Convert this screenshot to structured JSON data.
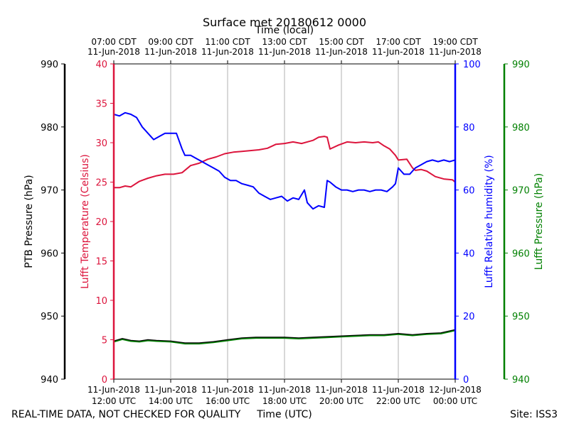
{
  "chart_data": {
    "type": "line",
    "title": "Surface met 20180612 0000",
    "top_xlabel": "Time (local)",
    "xlabel": "Time (UTC)",
    "footer_left": "REAL-TIME DATA, NOT CHECKED FOR QUALITY",
    "footer_right": "Site: ISS3",
    "x_hours": [
      12,
      24
    ],
    "bottom_ticks": [
      {
        "hour": 12,
        "line1": "11-Jun-2018",
        "line2": "12:00 UTC"
      },
      {
        "hour": 14,
        "line1": "11-Jun-2018",
        "line2": "14:00 UTC"
      },
      {
        "hour": 16,
        "line1": "11-Jun-2018",
        "line2": "16:00 UTC"
      },
      {
        "hour": 18,
        "line1": "11-Jun-2018",
        "line2": "18:00 UTC"
      },
      {
        "hour": 20,
        "line1": "11-Jun-2018",
        "line2": "20:00 UTC"
      },
      {
        "hour": 22,
        "line1": "11-Jun-2018",
        "line2": "22:00 UTC"
      },
      {
        "hour": 24,
        "line1": "12-Jun-2018",
        "line2": "00:00 UTC"
      }
    ],
    "top_ticks": [
      {
        "hour": 12,
        "line1": "07:00 CDT",
        "line2": "11-Jun-2018"
      },
      {
        "hour": 14,
        "line1": "09:00 CDT",
        "line2": "11-Jun-2018"
      },
      {
        "hour": 16,
        "line1": "11:00 CDT",
        "line2": "11-Jun-2018"
      },
      {
        "hour": 18,
        "line1": "13:00 CDT",
        "line2": "11-Jun-2018"
      },
      {
        "hour": 20,
        "line1": "15:00 CDT",
        "line2": "11-Jun-2018"
      },
      {
        "hour": 22,
        "line1": "17:00 CDT",
        "line2": "11-Jun-2018"
      },
      {
        "hour": 24,
        "line1": "19:00 CDT",
        "line2": "11-Jun-2018"
      }
    ],
    "axes": [
      {
        "id": "ptb",
        "label": "PTB Pressure (hPa)",
        "color": "#000000",
        "range": [
          940,
          990
        ],
        "ticks": [
          940,
          950,
          960,
          970,
          980,
          990
        ]
      },
      {
        "id": "temp",
        "label": "Lufft Temperature (Celsius)",
        "color": "#dc143c",
        "range": [
          0,
          40
        ],
        "ticks": [
          0,
          5,
          10,
          15,
          20,
          25,
          30,
          35,
          40
        ]
      },
      {
        "id": "rh",
        "label": "Lufft Relative humidity (%)",
        "color": "#0000ff",
        "range": [
          0,
          100
        ],
        "ticks": [
          0,
          20,
          40,
          60,
          80,
          100
        ]
      },
      {
        "id": "lp",
        "label": "Lufft Pressure (hPa)",
        "color": "#008000",
        "range": [
          940,
          990
        ],
        "ticks": [
          940,
          950,
          960,
          970,
          980,
          990
        ]
      }
    ],
    "series": [
      {
        "name": "Lufft Temperature",
        "axis": "temp",
        "color": "#dc143c",
        "x": [
          12.0,
          12.2,
          12.4,
          12.6,
          12.9,
          13.2,
          13.5,
          13.8,
          14.1,
          14.4,
          14.7,
          15.0,
          15.3,
          15.6,
          15.9,
          16.2,
          16.5,
          16.8,
          17.1,
          17.4,
          17.7,
          18.0,
          18.3,
          18.6,
          18.9,
          19.0,
          19.2,
          19.4,
          19.5,
          19.6,
          19.9,
          20.2,
          20.5,
          20.8,
          21.1,
          21.3,
          21.5,
          21.7,
          21.9,
          22.0,
          22.3,
          22.5,
          22.6,
          22.8,
          23.0,
          23.3,
          23.6,
          23.9,
          24.0
        ],
        "y": [
          24.3,
          24.3,
          24.5,
          24.4,
          25.1,
          25.5,
          25.8,
          26.0,
          26.0,
          26.2,
          27.1,
          27.4,
          27.9,
          28.2,
          28.6,
          28.8,
          28.9,
          29.0,
          29.1,
          29.3,
          29.8,
          29.9,
          30.1,
          29.9,
          30.2,
          30.3,
          30.7,
          30.8,
          30.7,
          29.2,
          29.7,
          30.1,
          30.0,
          30.1,
          30.0,
          30.1,
          29.6,
          29.2,
          28.4,
          27.8,
          27.9,
          26.8,
          26.5,
          26.6,
          26.4,
          25.7,
          25.4,
          25.3,
          25.0
        ]
      },
      {
        "name": "Lufft Relative humidity",
        "axis": "rh",
        "color": "#0000ff",
        "x": [
          12.0,
          12.2,
          12.4,
          12.6,
          12.8,
          13.0,
          13.2,
          13.4,
          13.6,
          13.8,
          14.0,
          14.2,
          14.4,
          14.5,
          14.7,
          14.9,
          15.1,
          15.3,
          15.5,
          15.7,
          15.9,
          16.1,
          16.3,
          16.5,
          16.7,
          16.9,
          17.1,
          17.3,
          17.5,
          17.7,
          17.9,
          18.1,
          18.3,
          18.5,
          18.7,
          18.8,
          19.0,
          19.2,
          19.4,
          19.5,
          19.6,
          19.8,
          20.0,
          20.2,
          20.4,
          20.6,
          20.8,
          21.0,
          21.2,
          21.4,
          21.6,
          21.8,
          21.9,
          22.0,
          22.2,
          22.4,
          22.6,
          22.8,
          23.0,
          23.2,
          23.4,
          23.6,
          23.8,
          24.0
        ],
        "y": [
          84.0,
          83.5,
          84.5,
          84.0,
          83.0,
          80.0,
          78.0,
          76.0,
          77.0,
          78.0,
          78.0,
          78.0,
          73.0,
          71.0,
          71.0,
          70.0,
          69.0,
          68.0,
          67.0,
          66.0,
          64.0,
          63.0,
          63.0,
          62.0,
          61.5,
          61.0,
          59.0,
          58.0,
          57.0,
          57.5,
          58.0,
          56.5,
          57.5,
          57.0,
          60.0,
          56.0,
          54.0,
          55.0,
          54.5,
          63.0,
          62.5,
          61.0,
          60.0,
          60.0,
          59.5,
          60.0,
          60.0,
          59.5,
          60.0,
          60.0,
          59.5,
          61.0,
          62.0,
          67.0,
          65.0,
          65.0,
          67.0,
          68.0,
          69.0,
          69.5,
          69.0,
          69.5,
          69.0,
          69.5
        ]
      },
      {
        "name": "PTB Pressure",
        "axis": "ptb",
        "color": "#000000",
        "x": [
          12.0,
          12.3,
          12.6,
          12.9,
          13.2,
          13.5,
          14.0,
          14.5,
          15.0,
          15.5,
          16.0,
          16.5,
          17.0,
          17.5,
          18.0,
          18.5,
          19.0,
          19.5,
          20.0,
          20.5,
          21.0,
          21.5,
          22.0,
          22.5,
          23.0,
          23.5,
          24.0
        ],
        "y": [
          946.0,
          946.4,
          946.1,
          946.0,
          946.2,
          946.1,
          946.0,
          945.7,
          945.7,
          945.9,
          946.2,
          946.5,
          946.6,
          946.6,
          946.6,
          946.5,
          946.6,
          946.7,
          946.8,
          946.9,
          947.0,
          947.0,
          947.2,
          947.0,
          947.2,
          947.3,
          947.8
        ]
      },
      {
        "name": "Lufft Pressure",
        "axis": "lp",
        "color": "#008000",
        "x": [
          12.0,
          12.3,
          12.6,
          12.9,
          13.2,
          13.5,
          14.0,
          14.5,
          15.0,
          15.5,
          16.0,
          16.5,
          17.0,
          17.5,
          18.0,
          18.5,
          19.0,
          19.5,
          20.0,
          20.5,
          21.0,
          21.5,
          22.0,
          22.5,
          23.0,
          23.5,
          24.0
        ],
        "y": [
          945.9,
          946.3,
          946.0,
          945.9,
          946.1,
          946.0,
          945.9,
          945.6,
          945.6,
          945.8,
          946.1,
          946.4,
          946.5,
          946.5,
          946.5,
          946.4,
          946.5,
          946.6,
          946.7,
          946.8,
          946.9,
          946.9,
          947.1,
          946.9,
          947.1,
          947.2,
          947.7
        ]
      }
    ]
  }
}
